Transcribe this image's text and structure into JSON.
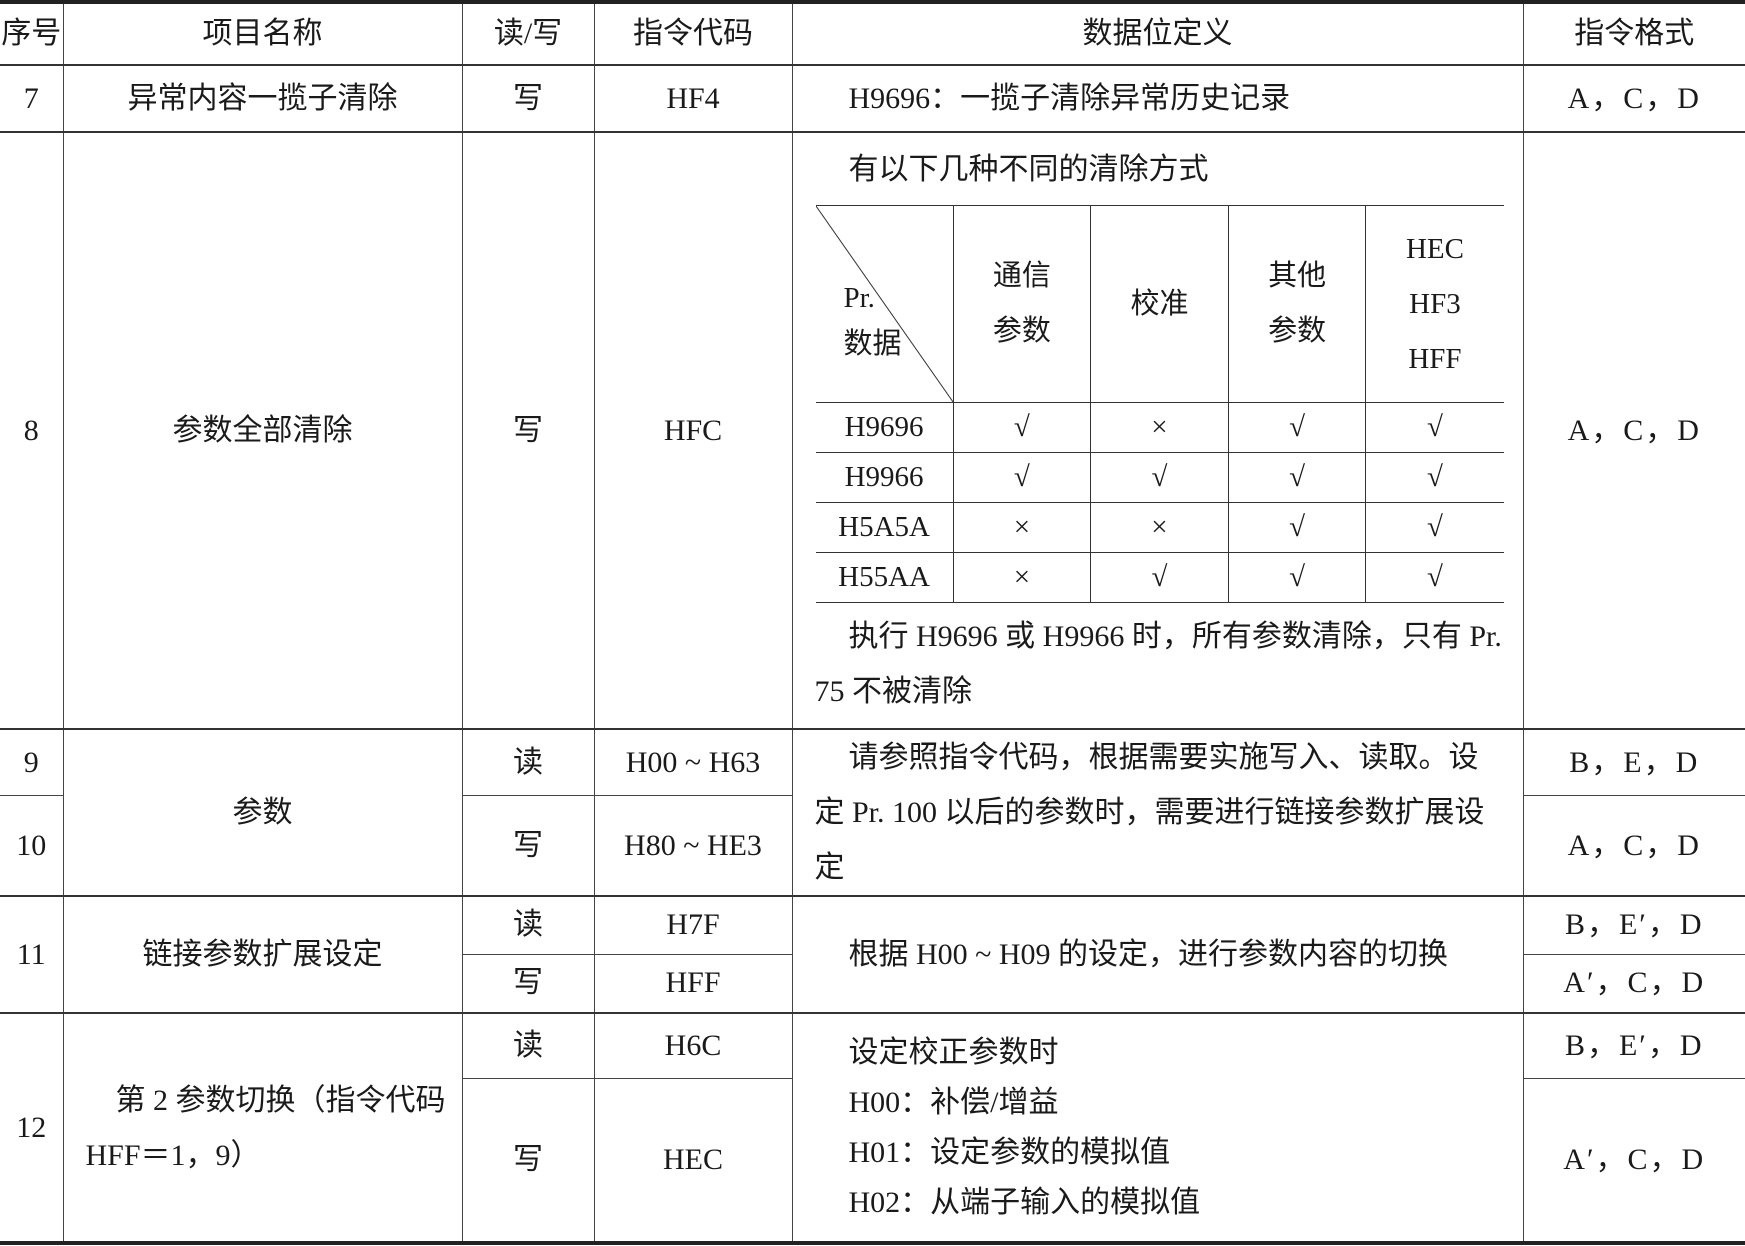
{
  "headers": [
    "序号",
    "项目名称",
    "读/写",
    "指令代码",
    "数据位定义",
    "指令格式"
  ],
  "rows": {
    "r7": {
      "no": "7",
      "name": "异常内容一揽子清除",
      "rw": "写",
      "code": "HF4",
      "def": "H9696：一揽子清除异常历史记录",
      "fmt": "A，C，D"
    },
    "r8": {
      "no": "8",
      "name": "参数全部清除",
      "rw": "写",
      "code": "HFC",
      "def_intro": "有以下几种不同的清除方式",
      "def_note": "执行 H9696 或 H9966 时，所有参数清除，只有 Pr. 75 不被清除",
      "fmt": "A，C，D",
      "inner": {
        "corner_top": "Pr.",
        "corner_bottom": "数据",
        "cols": [
          "通信\n参数",
          "校准",
          "其他\n参数",
          "HEC\nHF3\nHFF"
        ],
        "rows": [
          {
            "key": "H9696",
            "vals": [
              "√",
              "×",
              "√",
              "√"
            ]
          },
          {
            "key": "H9966",
            "vals": [
              "√",
              "√",
              "√",
              "√"
            ]
          },
          {
            "key": "H5A5A",
            "vals": [
              "×",
              "×",
              "√",
              "√"
            ]
          },
          {
            "key": "H55AA",
            "vals": [
              "×",
              "√",
              "√",
              "√"
            ]
          }
        ]
      }
    },
    "r9": {
      "no": "9",
      "rw": "读",
      "code": "H00 ~ H63",
      "fmt": "B，E，D"
    },
    "r10": {
      "no": "10",
      "rw": "写",
      "code": "H80 ~ HE3",
      "fmt": "A，C，D"
    },
    "r910": {
      "name": "参数",
      "def": "请参照指令代码，根据需要实施写入、读取。设定 Pr. 100 以后的参数时，需要进行链接参数扩展设定"
    },
    "r11": {
      "no": "11",
      "name": "链接参数扩展设定",
      "rw_r": "读",
      "code_r": "H7F",
      "fmt_r": "B，E′，D",
      "rw_w": "写",
      "code_w": "HFF",
      "fmt_w": "A′，C，D",
      "def": "根据 H00 ~ H09 的设定，进行参数内容的切换"
    },
    "r12": {
      "no": "12",
      "name": "第 2 参数切换（指令代码 HFF＝1，9）",
      "rw_r": "读",
      "code_r": "H6C",
      "fmt_r": "B，E′，D",
      "rw_w": "写",
      "code_w": "HEC",
      "fmt_w": "A′，C，D",
      "def_lines": [
        "设定校正参数时",
        "H00：补偿/增益",
        "H01：设定参数的模拟值",
        "H02：从端子输入的模拟值"
      ]
    }
  }
}
